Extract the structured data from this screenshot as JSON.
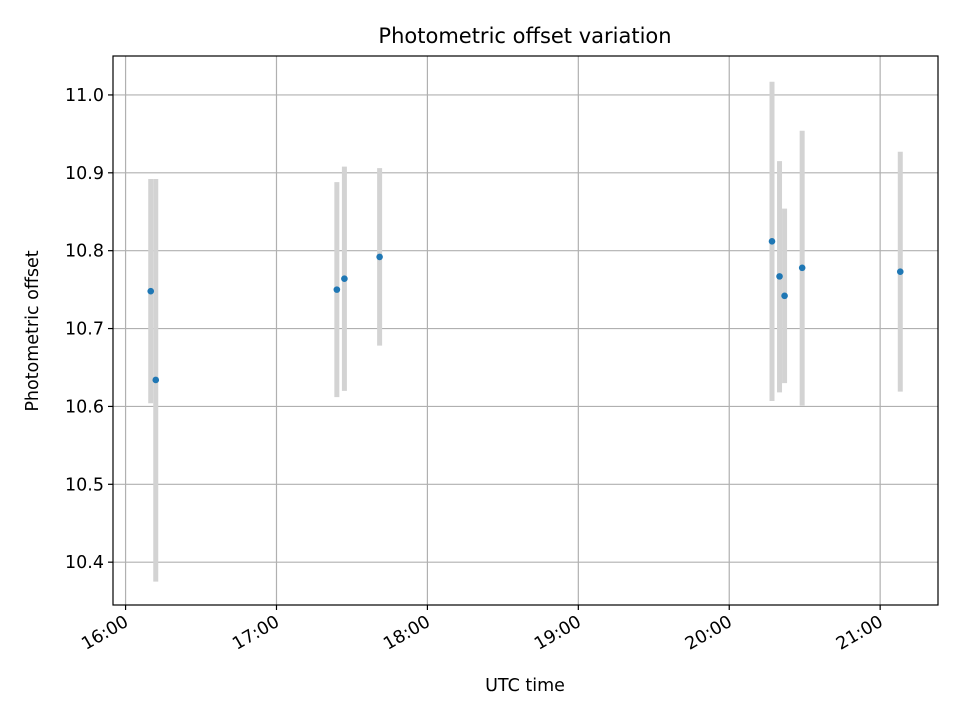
{
  "chart_data": {
    "type": "scatter",
    "title": "Photometric offset variation",
    "xlabel": "UTC time",
    "ylabel": "Photometric offset",
    "x_ticks": [
      "16:00",
      "17:00",
      "18:00",
      "19:00",
      "20:00",
      "21:00"
    ],
    "y_ticks": [
      10.4,
      10.5,
      10.6,
      10.7,
      10.8,
      10.9,
      11.0
    ],
    "xlim": [
      "15:55",
      "21:23"
    ],
    "ylim": [
      10.345,
      11.05
    ],
    "grid": true,
    "point_color": "#1f77b4",
    "errorbar_color": "#d3d3d3",
    "points": [
      {
        "time": "16:10",
        "y": 10.748,
        "yerr_low": 10.604,
        "yerr_high": 10.892
      },
      {
        "time": "16:12",
        "y": 10.634,
        "yerr_low": 10.375,
        "yerr_high": 10.892
      },
      {
        "time": "17:24",
        "y": 10.75,
        "yerr_low": 10.612,
        "yerr_high": 10.888
      },
      {
        "time": "17:27",
        "y": 10.764,
        "yerr_low": 10.62,
        "yerr_high": 10.908
      },
      {
        "time": "17:41",
        "y": 10.792,
        "yerr_low": 10.678,
        "yerr_high": 10.906
      },
      {
        "time": "20:17",
        "y": 10.812,
        "yerr_low": 10.607,
        "yerr_high": 11.017
      },
      {
        "time": "20:20",
        "y": 10.767,
        "yerr_low": 10.618,
        "yerr_high": 10.915
      },
      {
        "time": "20:22",
        "y": 10.742,
        "yerr_low": 10.63,
        "yerr_high": 10.854
      },
      {
        "time": "20:29",
        "y": 10.778,
        "yerr_low": 10.601,
        "yerr_high": 10.954
      },
      {
        "time": "21:08",
        "y": 10.773,
        "yerr_low": 10.619,
        "yerr_high": 10.927
      }
    ]
  }
}
